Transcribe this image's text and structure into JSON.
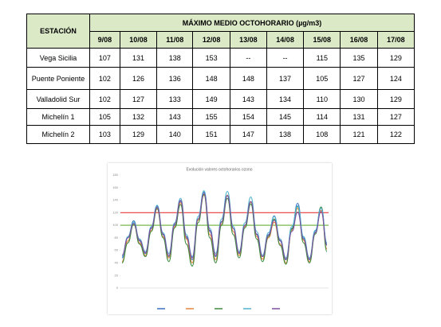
{
  "table": {
    "station_header": "ESTACIÓN",
    "group_header": "MÁXIMO MEDIO OCTOHORARIO (µg/m3)",
    "dates": [
      "9/08",
      "10/08",
      "11/08",
      "12/08",
      "13/08",
      "14/08",
      "15/08",
      "16/08",
      "17/08"
    ],
    "rows": [
      [
        "Vega Sicilia",
        "107",
        "131",
        "138",
        "153",
        "--",
        "--",
        "115",
        "135",
        "129"
      ],
      [
        "Puente Poniente",
        "102",
        "126",
        "136",
        "148",
        "148",
        "137",
        "105",
        "127",
        "124"
      ],
      [
        "Valladolid Sur",
        "102",
        "127",
        "133",
        "149",
        "143",
        "134",
        "110",
        "130",
        "129"
      ],
      [
        "Michelín 1",
        "105",
        "132",
        "143",
        "155",
        "154",
        "145",
        "114",
        "131",
        "127"
      ],
      [
        "Michelín 2",
        "103",
        "129",
        "140",
        "151",
        "147",
        "138",
        "108",
        "121",
        "122"
      ]
    ]
  },
  "chart_data": {
    "type": "line",
    "title": "Evolución valores octohorarios ozono",
    "ylim": [
      0,
      180
    ],
    "yticks": [
      0,
      20,
      40,
      60,
      80,
      100,
      120,
      140,
      160,
      180
    ],
    "reference_lines": [
      {
        "value": 120,
        "color": "#e8393a"
      },
      {
        "value": 100,
        "color": "#78b84e"
      }
    ],
    "series": [
      {
        "color": "#3a6fc4",
        "values": [
          48,
          80,
          107,
          75,
          55,
          95,
          131,
          85,
          50,
          100,
          138,
          80,
          45,
          110,
          153,
          90,
          50,
          105,
          148,
          95,
          55,
          100,
          137,
          85,
          50,
          85,
          115,
          75,
          45,
          95,
          135,
          80,
          45,
          90,
          129,
          70
        ]
      },
      {
        "color": "#e8833a",
        "values": [
          42,
          75,
          102,
          72,
          52,
          92,
          126,
          82,
          48,
          98,
          136,
          78,
          40,
          108,
          148,
          85,
          45,
          102,
          148,
          90,
          52,
          98,
          137,
          82,
          46,
          80,
          105,
          70,
          40,
          92,
          127,
          76,
          42,
          88,
          124,
          62
        ]
      },
      {
        "color": "#3f8a3f",
        "values": [
          40,
          72,
          102,
          70,
          50,
          90,
          127,
          80,
          42,
          96,
          133,
          70,
          35,
          104,
          149,
          80,
          40,
          100,
          143,
          85,
          48,
          96,
          134,
          78,
          42,
          82,
          110,
          68,
          38,
          94,
          130,
          72,
          40,
          86,
          129,
          58
        ]
      },
      {
        "color": "#4fb3cf",
        "values": [
          50,
          82,
          105,
          78,
          58,
          98,
          132,
          88,
          55,
          104,
          143,
          85,
          50,
          114,
          155,
          95,
          55,
          110,
          154,
          98,
          58,
          104,
          145,
          90,
          52,
          88,
          114,
          78,
          48,
          98,
          131,
          82,
          48,
          92,
          127,
          72
        ]
      },
      {
        "color": "#7a4fa0",
        "values": [
          52,
          80,
          103,
          76,
          56,
          96,
          129,
          86,
          52,
          102,
          140,
          82,
          48,
          110,
          151,
          92,
          52,
          106,
          147,
          95,
          56,
          100,
          138,
          86,
          50,
          84,
          108,
          76,
          46,
          90,
          121,
          78,
          46,
          88,
          122,
          68
        ]
      }
    ]
  }
}
